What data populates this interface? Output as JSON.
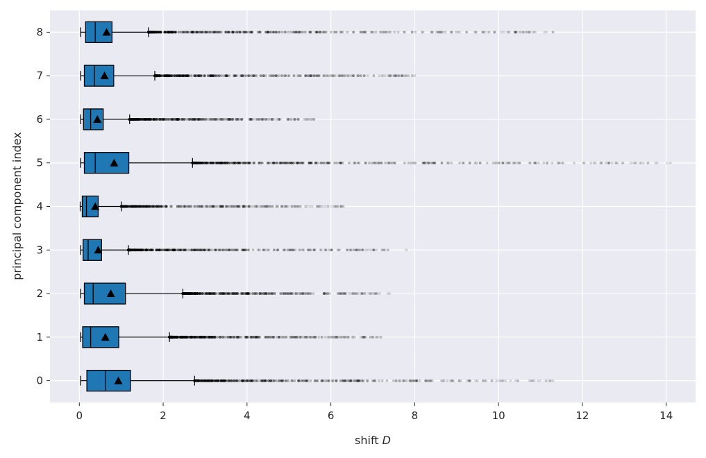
{
  "chart_data": {
    "type": "boxplot",
    "orientation": "horizontal",
    "xlabel_prefix": "shift ",
    "xlabel_var": "D",
    "ylabel": "principal component index",
    "xlim": [
      -0.7,
      14.7
    ],
    "ylim": [
      -0.5,
      8.5
    ],
    "x_ticks": [
      0,
      2,
      4,
      6,
      8,
      10,
      12,
      14
    ],
    "grid": true,
    "background": "#eaeaf2",
    "box_color": "#1f77b4",
    "categories": [
      "0",
      "1",
      "2",
      "3",
      "4",
      "5",
      "6",
      "7",
      "8"
    ],
    "boxes": [
      {
        "label": "0",
        "whislo": 0.03,
        "q1": 0.18,
        "median": 0.62,
        "q3": 1.22,
        "whishi": 2.75,
        "mean": 0.93,
        "flier_max": 11.3
      },
      {
        "label": "1",
        "whislo": 0.03,
        "q1": 0.08,
        "median": 0.27,
        "q3": 0.94,
        "whishi": 2.15,
        "mean": 0.62,
        "flier_max": 7.2
      },
      {
        "label": "2",
        "whislo": 0.03,
        "q1": 0.12,
        "median": 0.33,
        "q3": 1.1,
        "whishi": 2.47,
        "mean": 0.75,
        "flier_max": 7.4
      },
      {
        "label": "3",
        "whislo": 0.03,
        "q1": 0.09,
        "median": 0.21,
        "q3": 0.53,
        "whishi": 1.17,
        "mean": 0.45,
        "flier_max": 7.8
      },
      {
        "label": "4",
        "whislo": 0.02,
        "q1": 0.07,
        "median": 0.17,
        "q3": 0.45,
        "whishi": 1.0,
        "mean": 0.38,
        "flier_max": 6.3
      },
      {
        "label": "5",
        "whislo": 0.03,
        "q1": 0.12,
        "median": 0.38,
        "q3": 1.18,
        "whishi": 2.7,
        "mean": 0.83,
        "flier_max": 14.1
      },
      {
        "label": "6",
        "whislo": 0.03,
        "q1": 0.1,
        "median": 0.27,
        "q3": 0.57,
        "whishi": 1.2,
        "mean": 0.43,
        "flier_max": 5.6
      },
      {
        "label": "7",
        "whislo": 0.03,
        "q1": 0.12,
        "median": 0.36,
        "q3": 0.82,
        "whishi": 1.8,
        "mean": 0.6,
        "flier_max": 8.0
      },
      {
        "label": "8",
        "whislo": 0.03,
        "q1": 0.15,
        "median": 0.38,
        "q3": 0.78,
        "whishi": 1.65,
        "mean": 0.65,
        "flier_max": 11.3
      }
    ]
  }
}
